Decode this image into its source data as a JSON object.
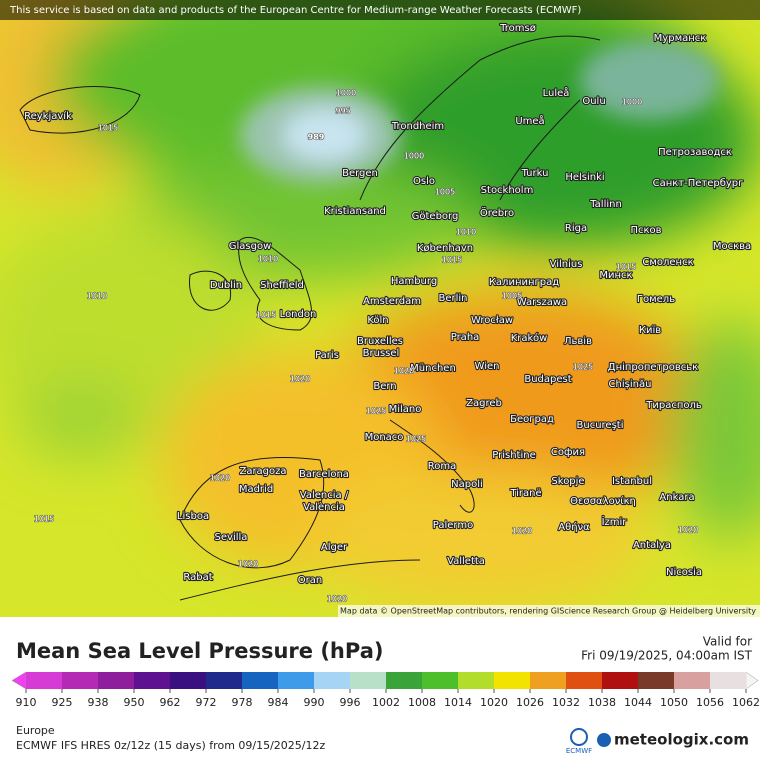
{
  "header": {
    "attribution": "This service is based on data and products of the European Centre for Medium-range Weather Forecasts (ECMWF)"
  },
  "map": {
    "cities": [
      "Reykjavík",
      "Tromsø",
      "Мурманск",
      "Luleå",
      "Oulu",
      "Trondheim",
      "Umeå",
      "Bergen",
      "Oslo",
      "Turku",
      "Helsinki",
      "Петрозаводск",
      "Санкт-Петербург",
      "Stockholm",
      "Kristiansand",
      "Göteborg",
      "Örebro",
      "Tallinn",
      "Glasgow",
      "Riga",
      "Псков",
      "København",
      "Москва",
      "Vilnius",
      "Минск",
      "Смоленск",
      "Dublin",
      "Sheffield",
      "Hamburg",
      "Калининград",
      "Berlin",
      "Amsterdam",
      "Warszawa",
      "Гомель",
      "London",
      "Köln",
      "Wrocław",
      "Київ",
      "Praha",
      "Kraków",
      "Bruxelles",
      "Brussel",
      "Львів",
      "Paris",
      "München",
      "Wien",
      "Дніпропетровськ",
      "Budapest",
      "Chișinău",
      "Bern",
      "Milano",
      "Zagreb",
      "Тирасполь",
      "Monaco",
      "Београд",
      "Bucureşti",
      "Prishtine",
      "София",
      "Zaragoza",
      "Barcelona",
      "Roma",
      "Istanbul",
      "Madrid",
      "Napoli",
      "Skopje",
      "Tiranë",
      "Valencia /",
      "València",
      "Ankara",
      "Θεσσαλονίκη",
      "Lisboa",
      "İzmir",
      "Αθήνα",
      "Palermo",
      "Sevilla",
      "Alger",
      "Valletta",
      "Antalya",
      "Nicosia",
      "Rabat",
      "Oran"
    ],
    "isobar_labels": [
      1000,
      995,
      989,
      1015,
      1000,
      1005,
      1010,
      1015,
      1010,
      1010,
      1015,
      1020,
      1020,
      1025,
      1025,
      1025,
      1020,
      1015,
      1020,
      1020,
      1020,
      1020,
      1000,
      1015,
      1005
    ],
    "credit": "Map data © OpenStreetMap contributors, rendering GIScience Research Group @ Heidelberg University"
  },
  "legend": {
    "title": "Mean Sea Level Pressure (hPa)",
    "valid_label": "Valid for",
    "valid_time": "Fri 09/19/2025, 04:00am IST",
    "colorbar": {
      "ticks": [
        910,
        925,
        938,
        950,
        962,
        972,
        978,
        984,
        990,
        996,
        1002,
        1008,
        1014,
        1020,
        1026,
        1032,
        1038,
        1044,
        1050,
        1056,
        1062
      ],
      "colors": [
        "#d63bd6",
        "#b42ab4",
        "#8e1e9c",
        "#5e1292",
        "#3a0f80",
        "#1f2a8c",
        "#1565c0",
        "#3d9be9",
        "#a6d4f5",
        "#b8e0c8",
        "#3aa33a",
        "#4cbf2a",
        "#b2dd2a",
        "#f2e400",
        "#f0a020",
        "#e05010",
        "#b01010",
        "#7a3a2a",
        "#d9a0a0",
        "#e8e0e0"
      ],
      "low_color": "#f040f0",
      "high_color": "#f4f4f4"
    }
  },
  "footer": {
    "region": "Europe",
    "model": "ECMWF IFS HRES 0z/12z (15 days) from  09/15/2025/12z",
    "ecmwf": "ECMWF",
    "brand": "meteologix.com"
  }
}
